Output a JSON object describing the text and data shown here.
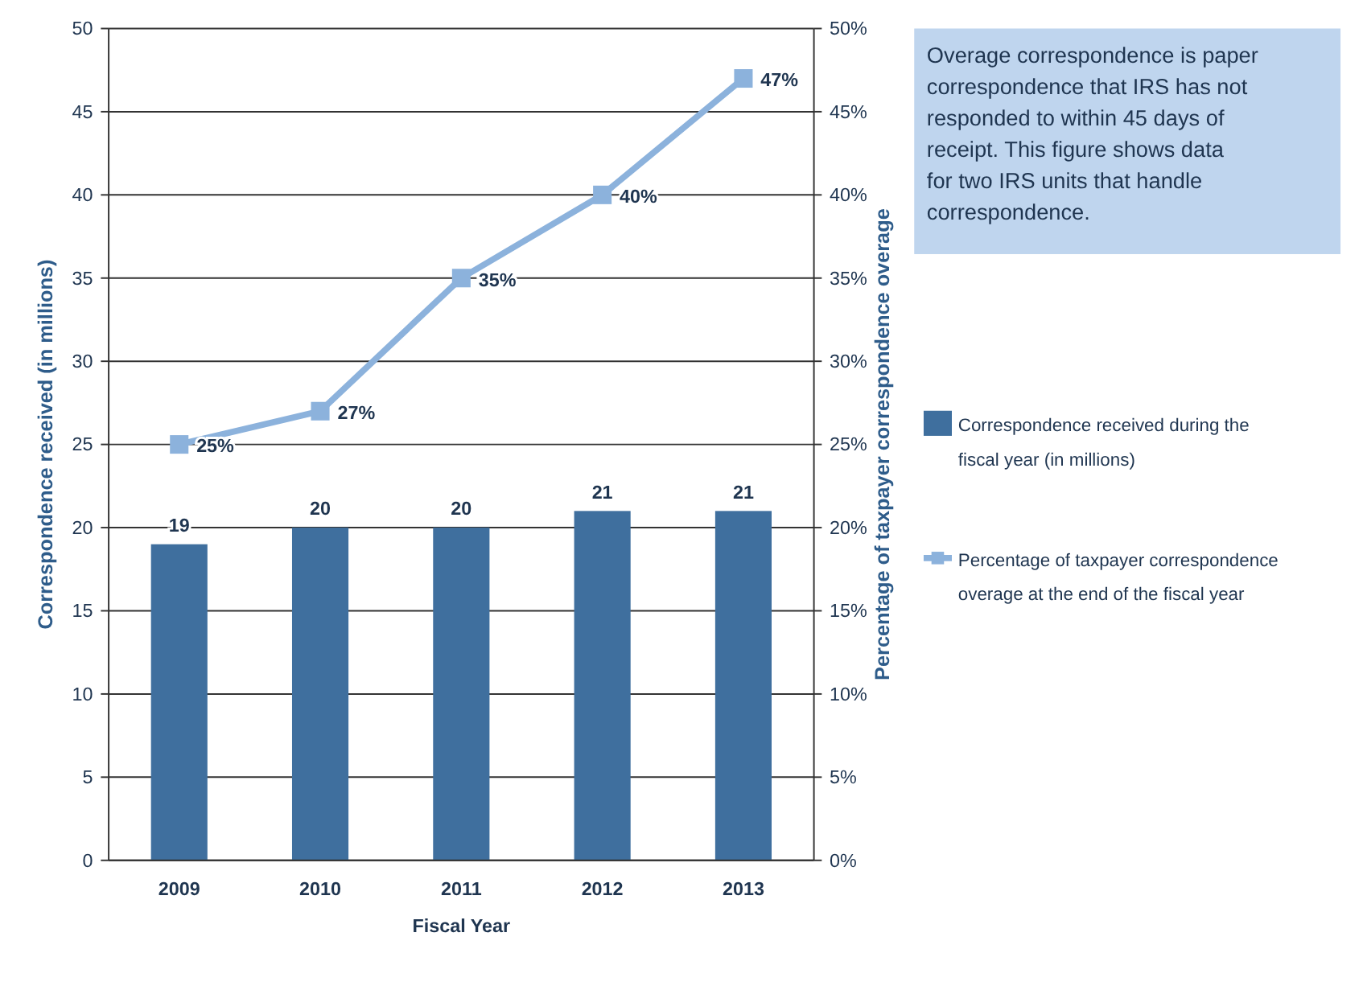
{
  "chart_data": {
    "type": "bar",
    "xlabel": "Fiscal Year",
    "ylabel": "Correspondence received (in millions)",
    "y2label": "Percentage of taxpayer correspondence overage",
    "categories": [
      "2009",
      "2010",
      "2011",
      "2012",
      "2013"
    ],
    "series": [
      {
        "name": "Correspondence received during the fiscal year (in millions)",
        "color": "#3f6f9e",
        "values": [
          19,
          20,
          20,
          21,
          21
        ],
        "value_labels": [
          "19",
          "20",
          "20",
          "21",
          "21"
        ]
      },
      {
        "name": "Percentage of taxpayer correspondence overage at the end of the fiscal year",
        "type": "line",
        "axis": "y2",
        "color": "#8cb2dc",
        "marker": "square",
        "values": [
          25,
          27,
          35,
          40,
          47
        ],
        "value_labels": [
          "25%",
          "27%",
          "35%",
          "40%",
          "47%"
        ]
      }
    ],
    "ylim": [
      0,
      50
    ],
    "yticks": [
      0,
      5,
      10,
      15,
      20,
      25,
      30,
      35,
      40,
      45,
      50
    ],
    "y2lim": [
      0,
      50
    ],
    "y2ticks": [
      {
        "value": 0,
        "label": "0%"
      },
      {
        "value": 5,
        "label": "5%"
      },
      {
        "value": 10,
        "label": "10%"
      },
      {
        "value": 15,
        "label": "15%"
      },
      {
        "value": 20,
        "label": "20%"
      },
      {
        "value": 25,
        "label": "25%"
      },
      {
        "value": 30,
        "label": "30%"
      },
      {
        "value": 35,
        "label": "35%"
      },
      {
        "value": 40,
        "label": "40%"
      },
      {
        "value": 45,
        "label": "45%"
      },
      {
        "value": 50,
        "label": "50%"
      }
    ],
    "grid": "y",
    "legend": "right",
    "annotations": [
      "Overage correspondence is paper correspondence that IRS has not responded to within 45 days of receipt. This figure shows data for two IRS units that handle correspondence."
    ]
  }
}
